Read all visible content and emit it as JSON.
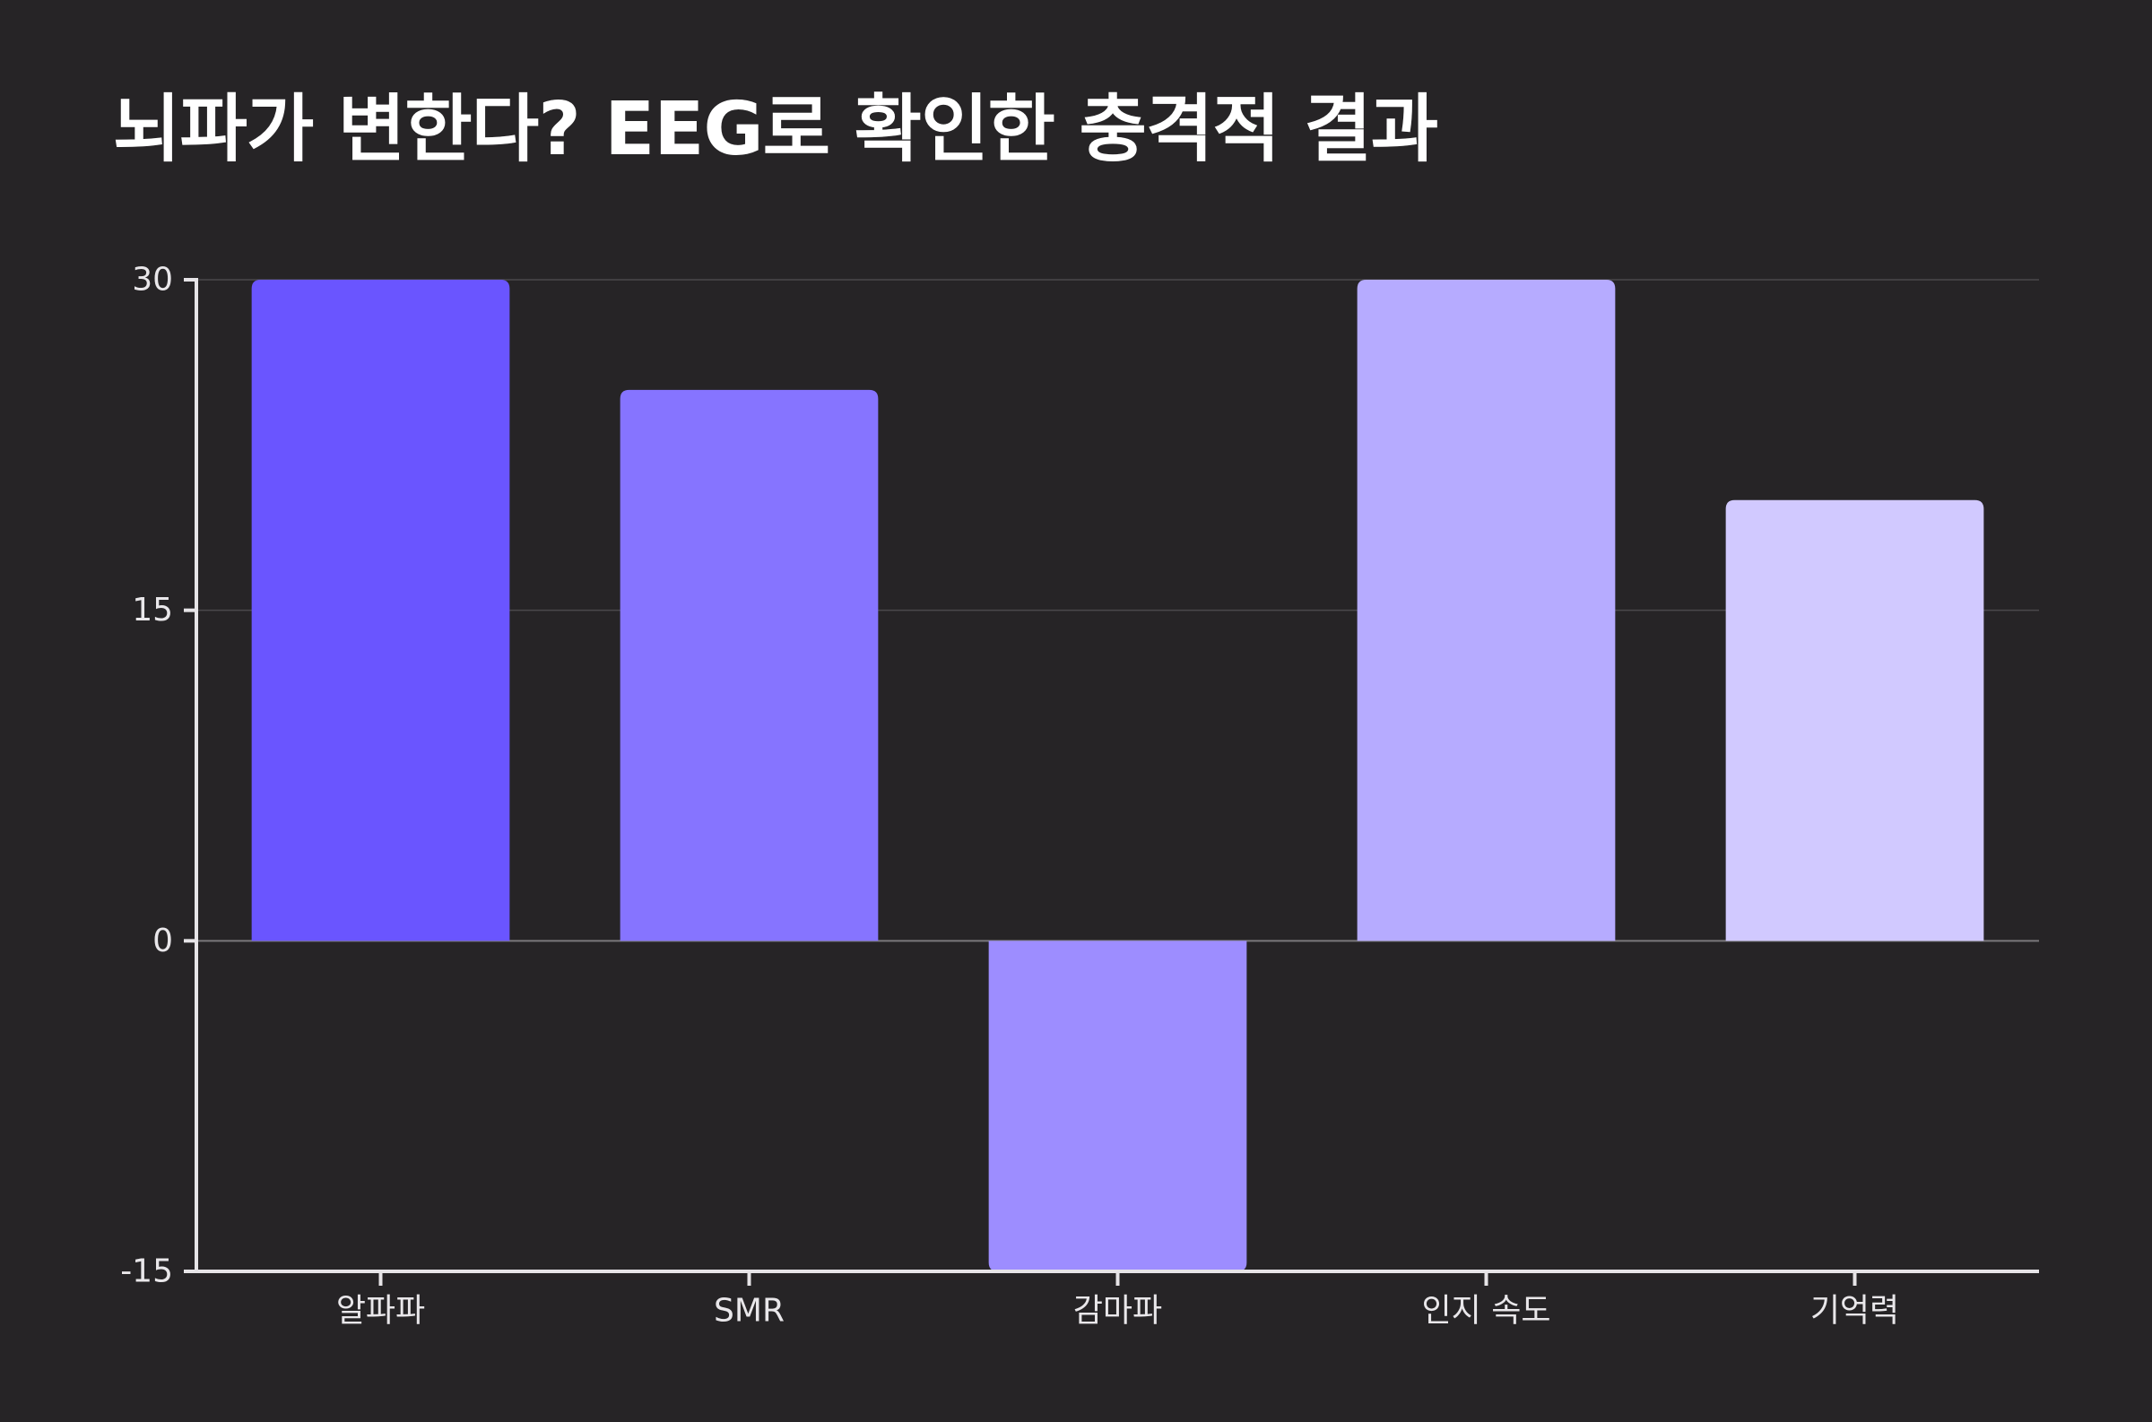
{
  "chart_data": {
    "type": "bar",
    "title": "뇌파가 변한다? EEG로 확인한 충격적 결과",
    "xlabel": "",
    "ylabel": "",
    "categories": [
      "알파파",
      "SMR",
      "감마파",
      "인지 속도",
      "기억력"
    ],
    "values": [
      30,
      25,
      -15,
      30,
      20
    ],
    "colors": [
      "#6a55ff",
      "#8674ff",
      "#9d8dff",
      "#b6abff",
      "#d1c9ff"
    ],
    "ylim": [
      -15,
      30
    ],
    "yticks": [
      30,
      15,
      0,
      -15
    ],
    "ytick_labels": [
      "30",
      "15",
      "0",
      "-15"
    ],
    "grid": true,
    "legend": "none"
  }
}
